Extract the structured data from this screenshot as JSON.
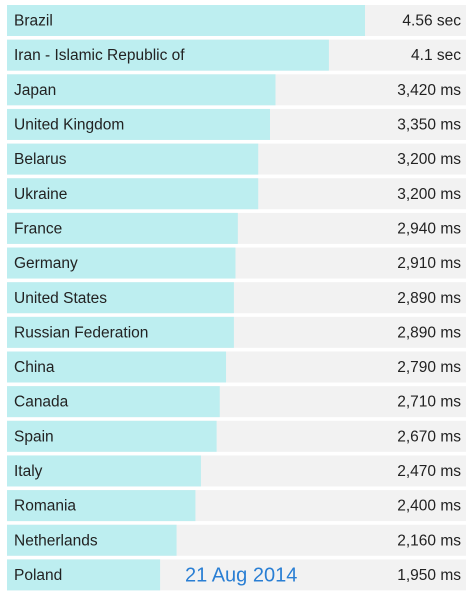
{
  "chart_data": {
    "type": "bar",
    "orientation": "horizontal",
    "categories": [
      "Brazil",
      "Iran - Islamic Republic of",
      "Japan",
      "United Kingdom",
      "Belarus",
      "Ukraine",
      "France",
      "Germany",
      "United States",
      "Russian Federation",
      "China",
      "Canada",
      "Spain",
      "Italy",
      "Romania",
      "Netherlands",
      "Poland"
    ],
    "values": [
      4560,
      4100,
      3420,
      3350,
      3200,
      3200,
      2940,
      2910,
      2890,
      2890,
      2790,
      2710,
      2670,
      2470,
      2400,
      2160,
      1950
    ],
    "value_labels": [
      "4.56 sec",
      "4.1 sec",
      "3,420 ms",
      "3,350 ms",
      "3,200 ms",
      "3,200 ms",
      "2,940 ms",
      "2,910 ms",
      "2,890 ms",
      "2,890 ms",
      "2,790 ms",
      "2,710 ms",
      "2,670 ms",
      "2,470 ms",
      "2,400 ms",
      "2,160 ms",
      "1,950 ms"
    ],
    "color": "#bdeef0",
    "annotation": "21 Aug 2014"
  }
}
